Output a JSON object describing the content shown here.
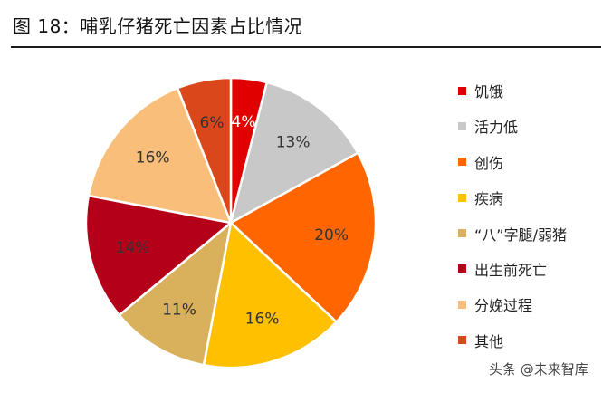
{
  "figure": {
    "title": "图 18：哺乳仔猪死亡因素占比情况"
  },
  "chart_data": {
    "type": "pie",
    "title": "",
    "slices": [
      {
        "label": "饥饿",
        "value": 4,
        "display": "4%",
        "color": "#e00000",
        "label_color": "#ffffff"
      },
      {
        "label": "活力低",
        "value": 13,
        "display": "13%",
        "color": "#c8c8c8",
        "label_color": "#333333"
      },
      {
        "label": "创伤",
        "value": 20,
        "display": "20%",
        "color": "#ff6600",
        "label_color": "#333333"
      },
      {
        "label": "疾病",
        "value": 16,
        "display": "16%",
        "color": "#ffc000",
        "label_color": "#333333"
      },
      {
        "label": "“八”字腿/弱猪",
        "value": 11,
        "display": "11%",
        "color": "#d9b05c",
        "label_color": "#333333"
      },
      {
        "label": "出生前死亡",
        "value": 14,
        "display": "14%",
        "color": "#b5001a",
        "label_color": "#333333"
      },
      {
        "label": "分娩过程",
        "value": 16,
        "display": "16%",
        "color": "#f9bf7a",
        "label_color": "#333333"
      },
      {
        "label": "其他",
        "value": 6,
        "display": "6%",
        "color": "#d9471a",
        "label_color": "#333333"
      }
    ],
    "start_angle_deg": 0,
    "direction": "clockwise",
    "legend_position": "right"
  },
  "watermark": {
    "text": "头条 @未来智库"
  }
}
